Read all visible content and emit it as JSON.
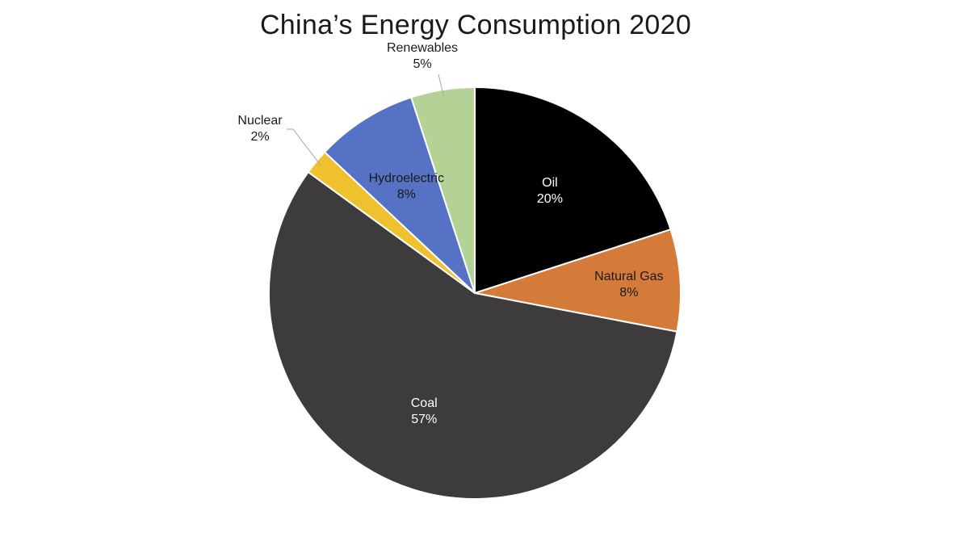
{
  "chart_data": {
    "type": "pie",
    "title": "China’s Energy Consumption 2020",
    "start_angle_deg": 0,
    "direction": "clockwise",
    "slices": [
      {
        "name": "Oil",
        "value": 20,
        "pct_label": "20%",
        "color": "#000000",
        "label_color": "#ffffff"
      },
      {
        "name": "Natural Gas",
        "value": 8,
        "pct_label": "8%",
        "color": "#d47b3a",
        "label_color": "#1a1a1a"
      },
      {
        "name": "Coal",
        "value": 57,
        "pct_label": "57%",
        "color": "#3d3b3b",
        "label_color": "#ffffff"
      },
      {
        "name": "Nuclear",
        "value": 2,
        "pct_label": "2%",
        "color": "#efc12f",
        "label_color": "#1a1a1a"
      },
      {
        "name": "Hydroelectric",
        "value": 8,
        "pct_label": "8%",
        "color": "#5572c4",
        "label_color": "#1a1a1a"
      },
      {
        "name": "Renewables",
        "value": 5,
        "pct_label": "5%",
        "color": "#b4d295",
        "label_color": "#1a1a1a"
      }
    ]
  }
}
